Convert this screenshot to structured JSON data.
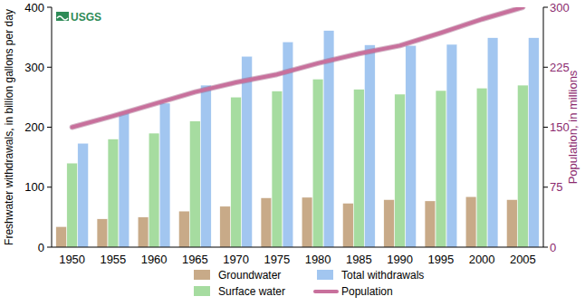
{
  "chart_data": {
    "type": "bar",
    "ylabel": "Freshwater withdrawals, in billion gallons per day",
    "y2label": "Population, in millions",
    "annotations": [
      {
        "text": "USGS"
      }
    ],
    "categories": [
      "1950",
      "1955",
      "1960",
      "1965",
      "1970",
      "1975",
      "1980",
      "1985",
      "1990",
      "1995",
      "2000",
      "2005"
    ],
    "series": [
      {
        "name": "Groundwater",
        "type": "bar",
        "color": "#c8aa88",
        "values": [
          34,
          47,
          50,
          60,
          68,
          82,
          83,
          73,
          79,
          77,
          84,
          79
        ]
      },
      {
        "name": "Surface water",
        "type": "bar",
        "color": "#a6dca0",
        "values": [
          140,
          180,
          190,
          210,
          250,
          260,
          280,
          263,
          255,
          261,
          265,
          270
        ]
      },
      {
        "name": "Total withdrawals",
        "type": "bar",
        "color": "#a2c6f0",
        "values": [
          173,
          225,
          240,
          270,
          318,
          342,
          361,
          337,
          336,
          338,
          349,
          349
        ]
      },
      {
        "name": "Population",
        "type": "line",
        "axis": "y2",
        "color": "#c8709c",
        "values": [
          150,
          164,
          179,
          194,
          206,
          216,
          230,
          242,
          252,
          268,
          285,
          300
        ]
      }
    ],
    "ylim": [
      0,
      400
    ],
    "yticks": [
      0,
      100,
      200,
      300,
      400
    ],
    "y2lim": [
      0,
      300
    ],
    "y2ticks": [
      0,
      75,
      150,
      225,
      300
    ],
    "grid": false,
    "legend": "bottom"
  }
}
